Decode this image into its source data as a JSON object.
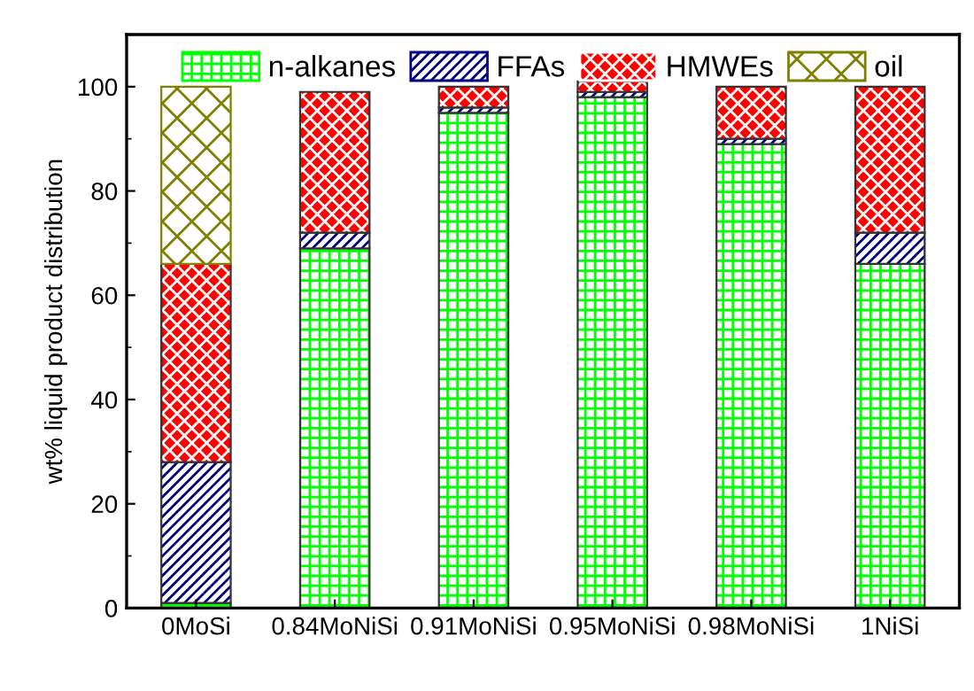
{
  "chart_data": {
    "type": "bar",
    "stacked": true,
    "ylabel": "wt% liquid product distribution",
    "categories": [
      "0MoSi",
      "0.84MoNiSi",
      "0.91MoNiSi",
      "0.95MoNiSi",
      "0.98MoNiSi",
      "1NiSi"
    ],
    "series": [
      {
        "name": "n-alkanes",
        "color": "#00ff00",
        "values": [
          1,
          69,
          95,
          98,
          89,
          66
        ]
      },
      {
        "name": "FFAs",
        "color": "#000080",
        "values": [
          27,
          3,
          1,
          1,
          1,
          6
        ]
      },
      {
        "name": "HMWEs",
        "color": "#ff0000",
        "values": [
          38,
          27,
          4,
          2,
          10,
          28
        ]
      },
      {
        "name": "oil",
        "color": "#808000",
        "values": [
          34,
          null,
          null,
          null,
          null,
          null
        ]
      }
    ],
    "ylim": [
      0,
      110
    ],
    "yticks": [
      0,
      20,
      40,
      60,
      80,
      100
    ],
    "grid": false,
    "legend": "top"
  }
}
